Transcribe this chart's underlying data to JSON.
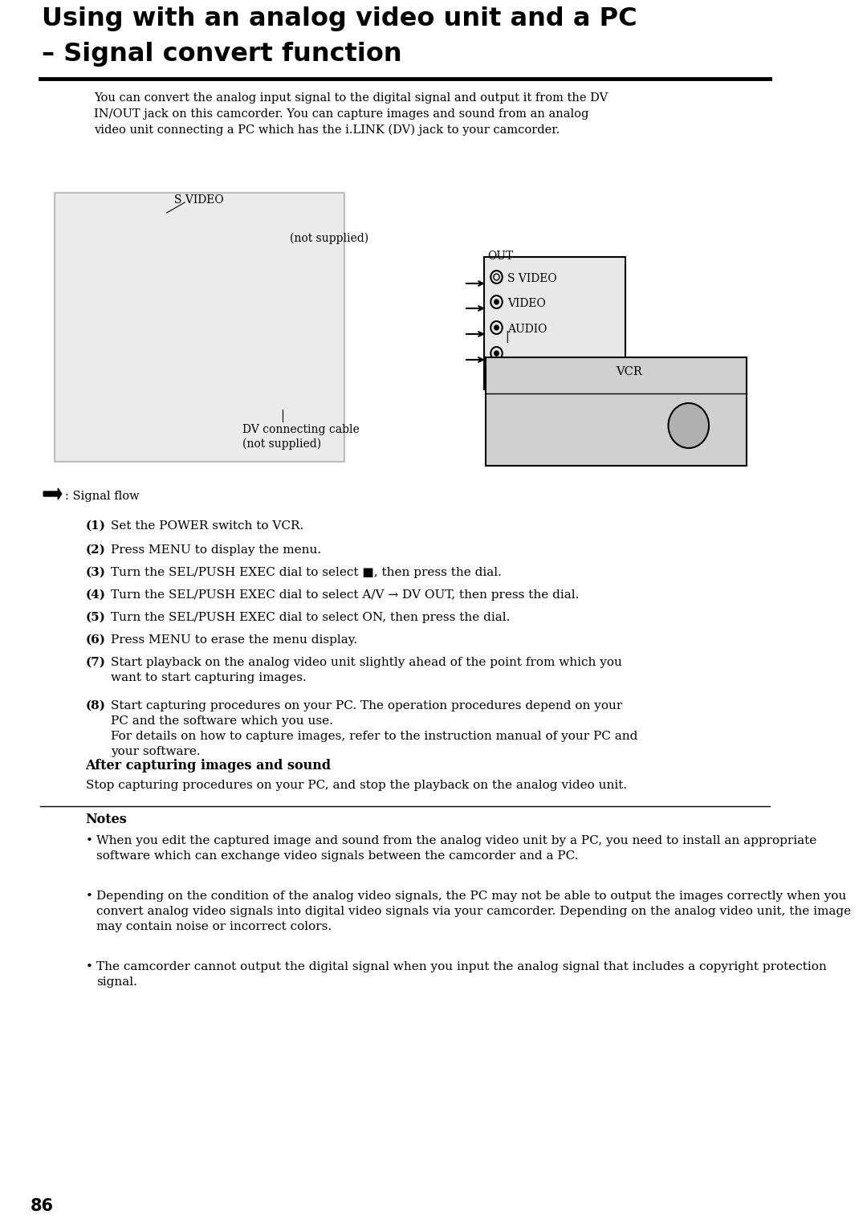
{
  "page_width": 10.8,
  "page_height": 15.28,
  "bg_color": "#ffffff",
  "title_line1": "Using with an analog video unit and a PC",
  "title_line2": "– Signal convert function",
  "intro_text": "You can convert the analog input signal to the digital signal and output it from the DV\nIN/OUT jack on this camcorder. You can capture images and sound from an analog\nvideo unit connecting a PC which has the i.LINK (DV) jack to your camcorder.",
  "steps": [
    [
      "(1)",
      "Set the POWER switch to VCR."
    ],
    [
      "(2)",
      "Press MENU to display the menu."
    ],
    [
      "(3)",
      "Turn the SEL/PUSH EXEC dial to select ■, then press the dial."
    ],
    [
      "(4)",
      "Turn the SEL/PUSH EXEC dial to select A/V → DV OUT, then press the dial."
    ],
    [
      "(5)",
      "Turn the SEL/PUSH EXEC dial to select ON, then press the dial."
    ],
    [
      "(6)",
      "Press MENU to erase the menu display."
    ],
    [
      "(7)",
      "Start playback on the analog video unit slightly ahead of the point from which you\nwant to start capturing images."
    ],
    [
      "(8)",
      "Start capturing procedures on your PC. The operation procedures depend on your\nPC and the software which you use.\nFor details on how to capture images, refer to the instruction manual of your PC and\nyour software."
    ]
  ],
  "signal_flow_label": " : Signal flow",
  "after_title": "After capturing images and sound",
  "after_text": "Stop capturing procedures on your PC, and stop the playback on the analog video unit.",
  "notes_title": "Notes",
  "notes": [
    "When you edit the captured image and sound from the analog video unit by a PC, you need to install an appropriate software which can exchange video signals between the camcorder and a PC.",
    "Depending on the condition of the analog video signals, the PC may not be able to output the images correctly when you convert analog video signals into digital video signals via your camcorder. Depending on the analog video unit, the image may contain noise or incorrect colors.",
    "The camcorder cannot output the digital signal when you input the analog signal that includes a copyright protection signal."
  ],
  "page_number": "86"
}
